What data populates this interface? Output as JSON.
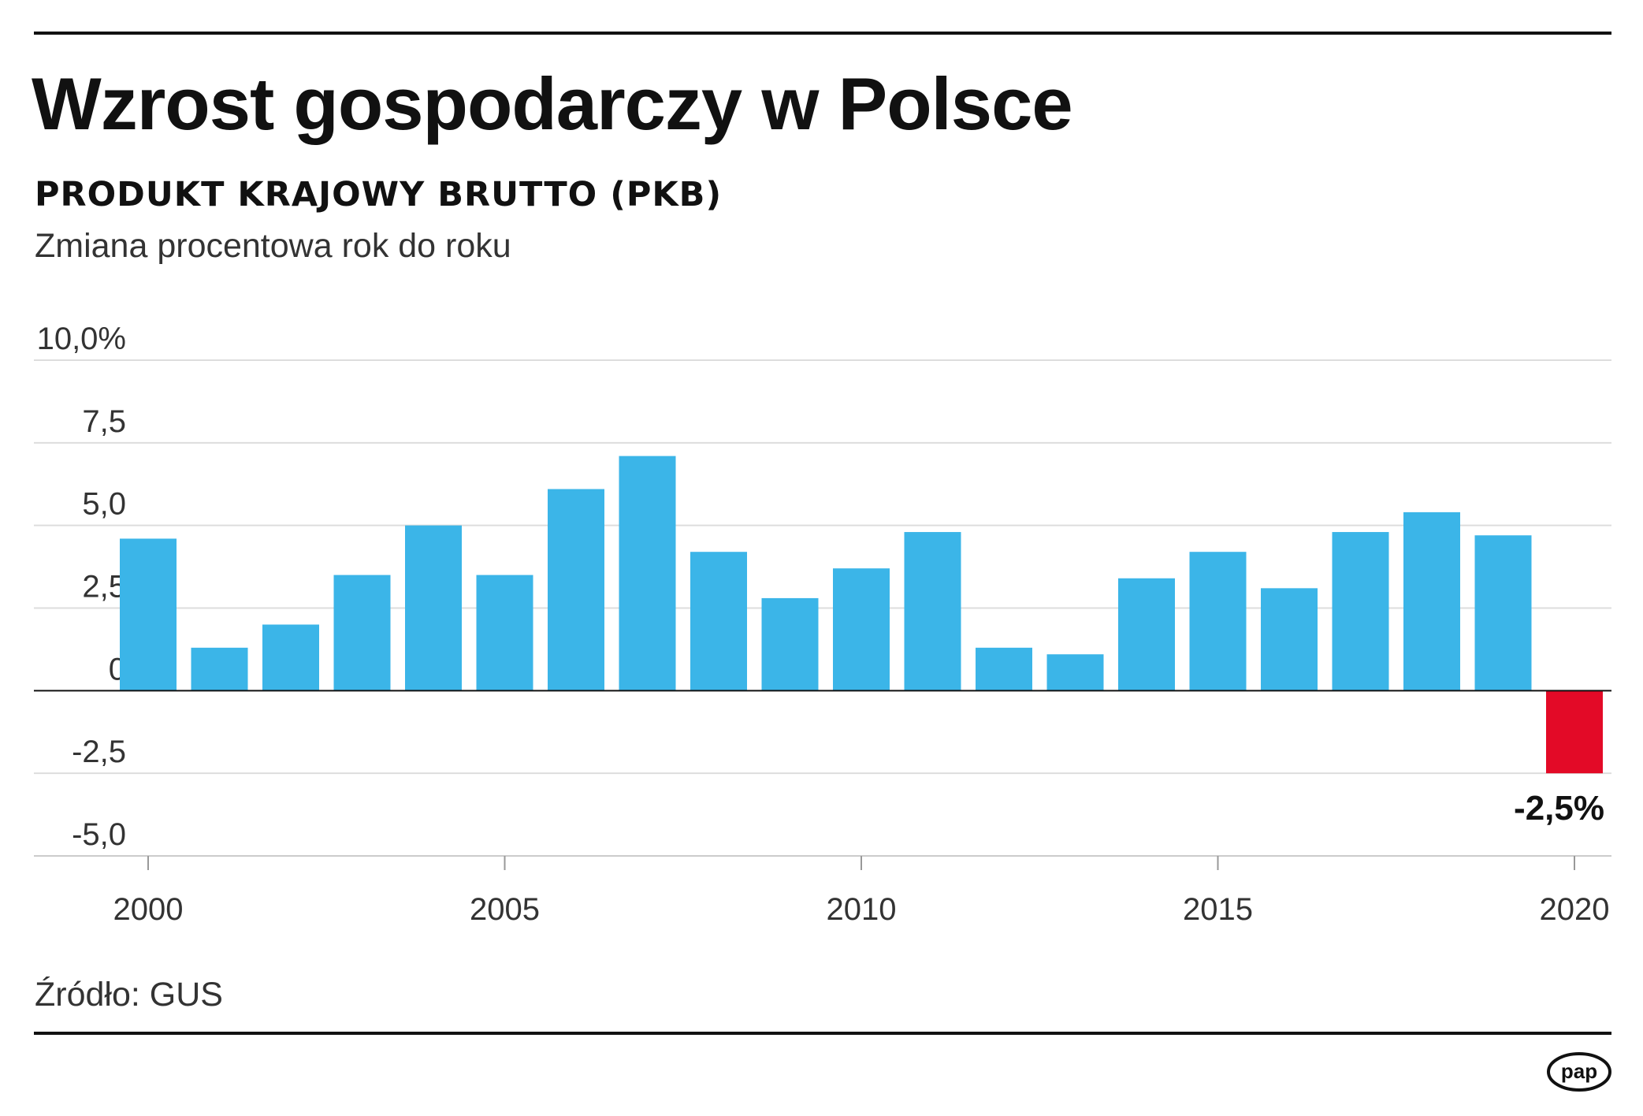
{
  "header": {
    "title": "Wzrost gospodarczy w Polsce",
    "subtitle": "PRODUKT KRAJOWY BRUTTO (PKB)",
    "note": "Zmiana procentowa rok do roku"
  },
  "footer": {
    "source": "Źródło: GUS",
    "logo_text": "pap"
  },
  "colors": {
    "positive": "#3bb5e8",
    "negative": "#e30a27",
    "grid": "#dddddd",
    "axis": "#111111"
  },
  "chart_data": {
    "type": "bar",
    "title": "PRODUKT KRAJOWY BRUTTO (PKB)",
    "ylabel": "Zmiana procentowa rok do roku",
    "xlabel": "",
    "ylim": [
      -5.0,
      10.0
    ],
    "yticks": [
      10.0,
      7.5,
      5.0,
      2.5,
      0,
      -2.5,
      -5.0
    ],
    "ytick_labels": [
      "10,0%",
      "7,5",
      "5,0",
      "2,5",
      "0",
      "-2,5",
      "-5,0"
    ],
    "xticks": [
      2000,
      2005,
      2010,
      2015,
      2020
    ],
    "xtick_labels": [
      "2000",
      "2005",
      "2010",
      "2015",
      "2020"
    ],
    "categories": [
      2000,
      2001,
      2002,
      2003,
      2004,
      2005,
      2006,
      2007,
      2008,
      2009,
      2010,
      2011,
      2012,
      2013,
      2014,
      2015,
      2016,
      2017,
      2018,
      2019,
      2020
    ],
    "values": [
      4.6,
      1.3,
      2.0,
      3.5,
      5.0,
      3.5,
      6.1,
      7.1,
      4.2,
      2.8,
      3.7,
      4.8,
      1.3,
      1.1,
      3.4,
      4.2,
      3.1,
      4.8,
      5.4,
      4.7,
      -2.5
    ],
    "annotations": [
      {
        "year": 2020,
        "text": "-2,5%"
      }
    ],
    "grid": true,
    "legend": "none"
  }
}
